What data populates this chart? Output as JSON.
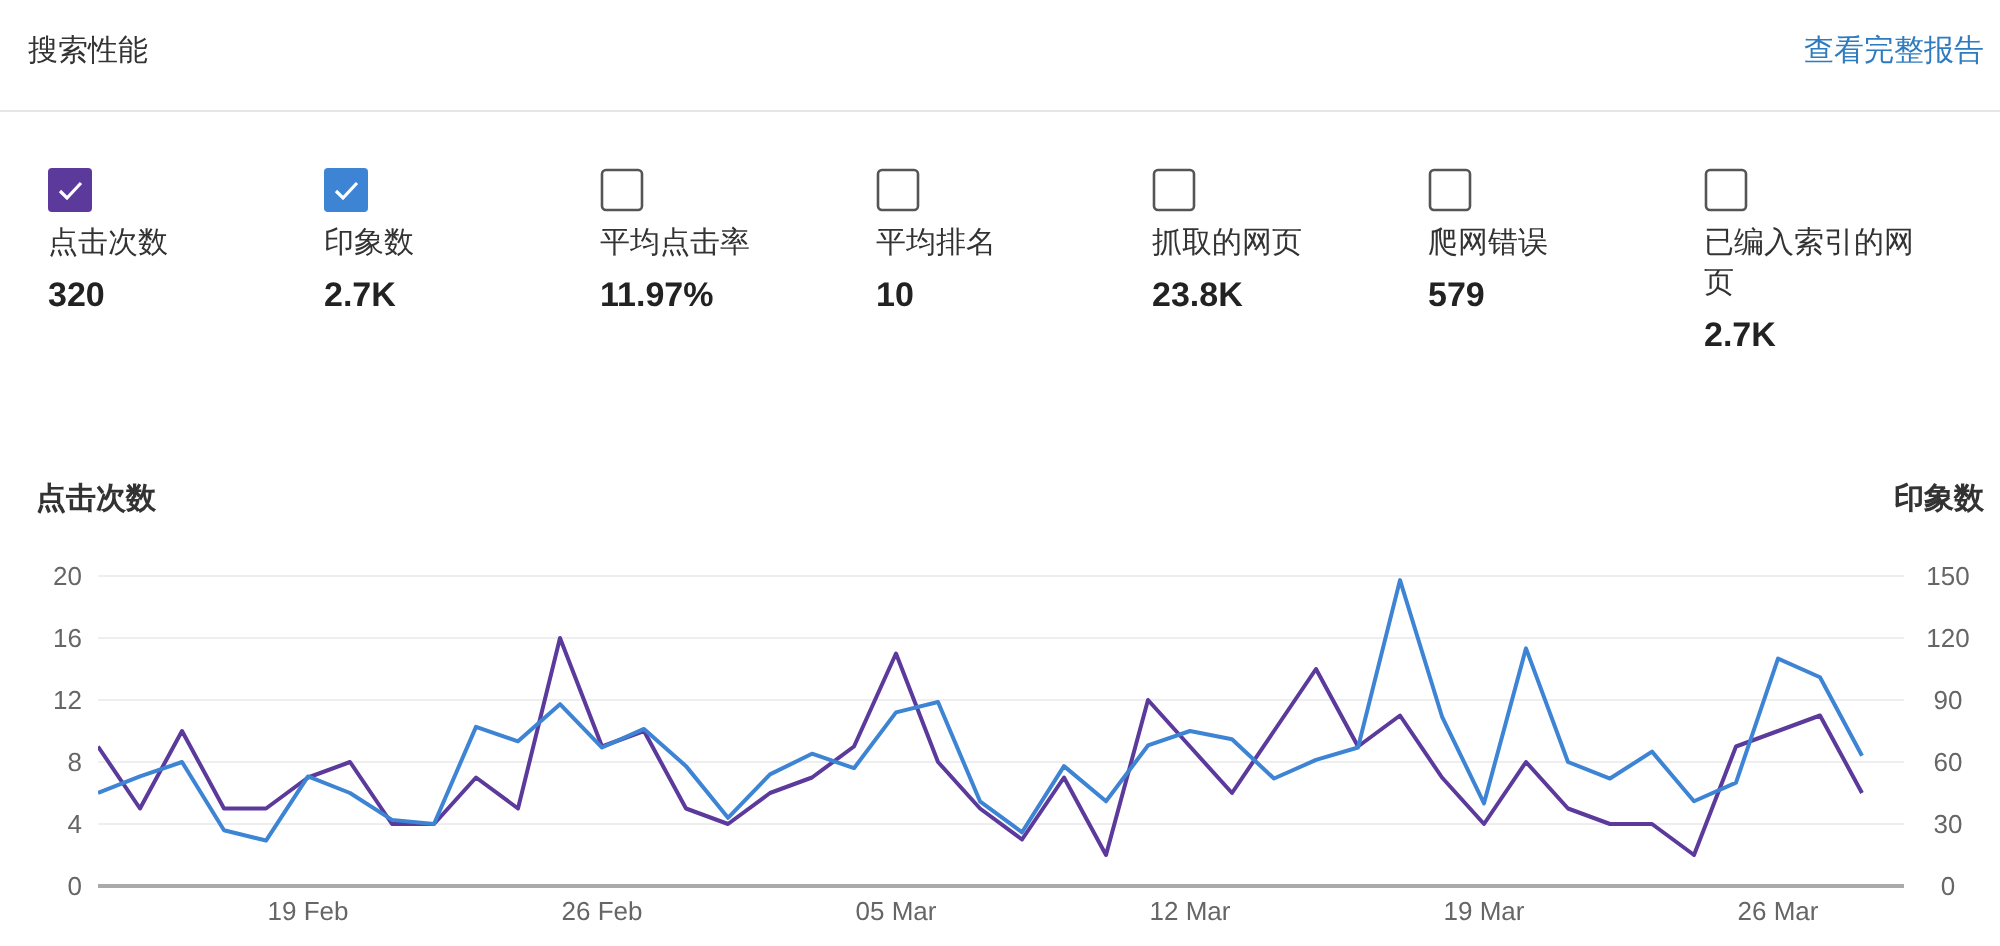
{
  "chart_data": [
    {
      "type": "other",
      "title": "搜索性能",
      "annotations": [
        "查看完整报告"
      ],
      "categories": [
        "点击次数",
        "印象数",
        "平均点击率",
        "平均排名",
        "抓取的网页",
        "爬网错误",
        "已编入索引的网页"
      ],
      "value_labels": [
        "320",
        "2.7K",
        "11.97%",
        "10",
        "23.8K",
        "579",
        "2.7K"
      ]
    },
    {
      "type": "line",
      "ylabel": "点击次数",
      "y2label": "印象数",
      "x": [
        "--02-14",
        "--02-15",
        "--02-16",
        "--02-17",
        "--02-18",
        "--02-19",
        "--02-20",
        "--02-21",
        "--02-22",
        "--02-23",
        "--02-24",
        "--02-25",
        "--02-26",
        "--02-27",
        "--02-28",
        "--03-01",
        "--03-02",
        "--03-03",
        "--03-04",
        "--03-05",
        "--03-06",
        "--03-07",
        "--03-08",
        "--03-09",
        "--03-10",
        "--03-11",
        "--03-12",
        "--03-13",
        "--03-14",
        "--03-15",
        "--03-16",
        "--03-17",
        "--03-18",
        "--03-19",
        "--03-20",
        "--03-21",
        "--03-22",
        "--03-23",
        "--03-24",
        "--03-25",
        "--03-26",
        "--03-27",
        "--03-28"
      ],
      "series": [
        {
          "color": "#5b3a9c",
          "values": [
            9,
            5,
            10,
            5,
            5,
            7,
            8,
            4,
            4,
            7,
            5,
            16,
            9,
            10,
            5,
            4,
            6,
            7,
            9,
            15,
            8,
            5,
            3,
            7,
            2,
            12,
            9,
            6,
            10,
            14,
            9,
            11,
            7,
            4,
            8,
            5,
            4,
            4,
            2,
            9,
            10,
            11,
            6
          ]
        },
        {
          "color": "#3d84d4",
          "axis": "y2",
          "values": [
            45,
            53,
            60,
            27,
            22,
            53,
            45,
            32,
            30,
            77,
            70,
            88,
            67,
            76,
            58,
            33,
            54,
            64,
            57,
            84,
            89,
            41,
            26,
            58,
            41,
            68,
            75,
            71,
            52,
            61,
            67,
            148,
            82,
            40,
            115,
            60,
            52,
            65,
            41,
            50,
            110,
            101,
            63
          ]
        }
      ],
      "xlim": [
        "--02-14",
        "--03-29"
      ],
      "xticks": [
        {
          "value": "--02-19",
          "label": "19 Feb"
        },
        {
          "value": "--02-26",
          "label": "26 Feb"
        },
        {
          "value": "--03-05",
          "label": "05 Mar"
        },
        {
          "value": "--03-12",
          "label": "12 Mar"
        },
        {
          "value": "--03-19",
          "label": "19 Mar"
        },
        {
          "value": "--03-26",
          "label": "26 Mar"
        }
      ],
      "ylim": [
        0,
        20
      ],
      "yticks": [
        0,
        4,
        8,
        12,
        16,
        20
      ],
      "y2lim": [
        0,
        150
      ],
      "y2ticks": [
        0,
        30,
        60,
        90,
        120,
        150
      ],
      "grid": "y",
      "marker": "none",
      "line_style": "solid"
    }
  ]
}
